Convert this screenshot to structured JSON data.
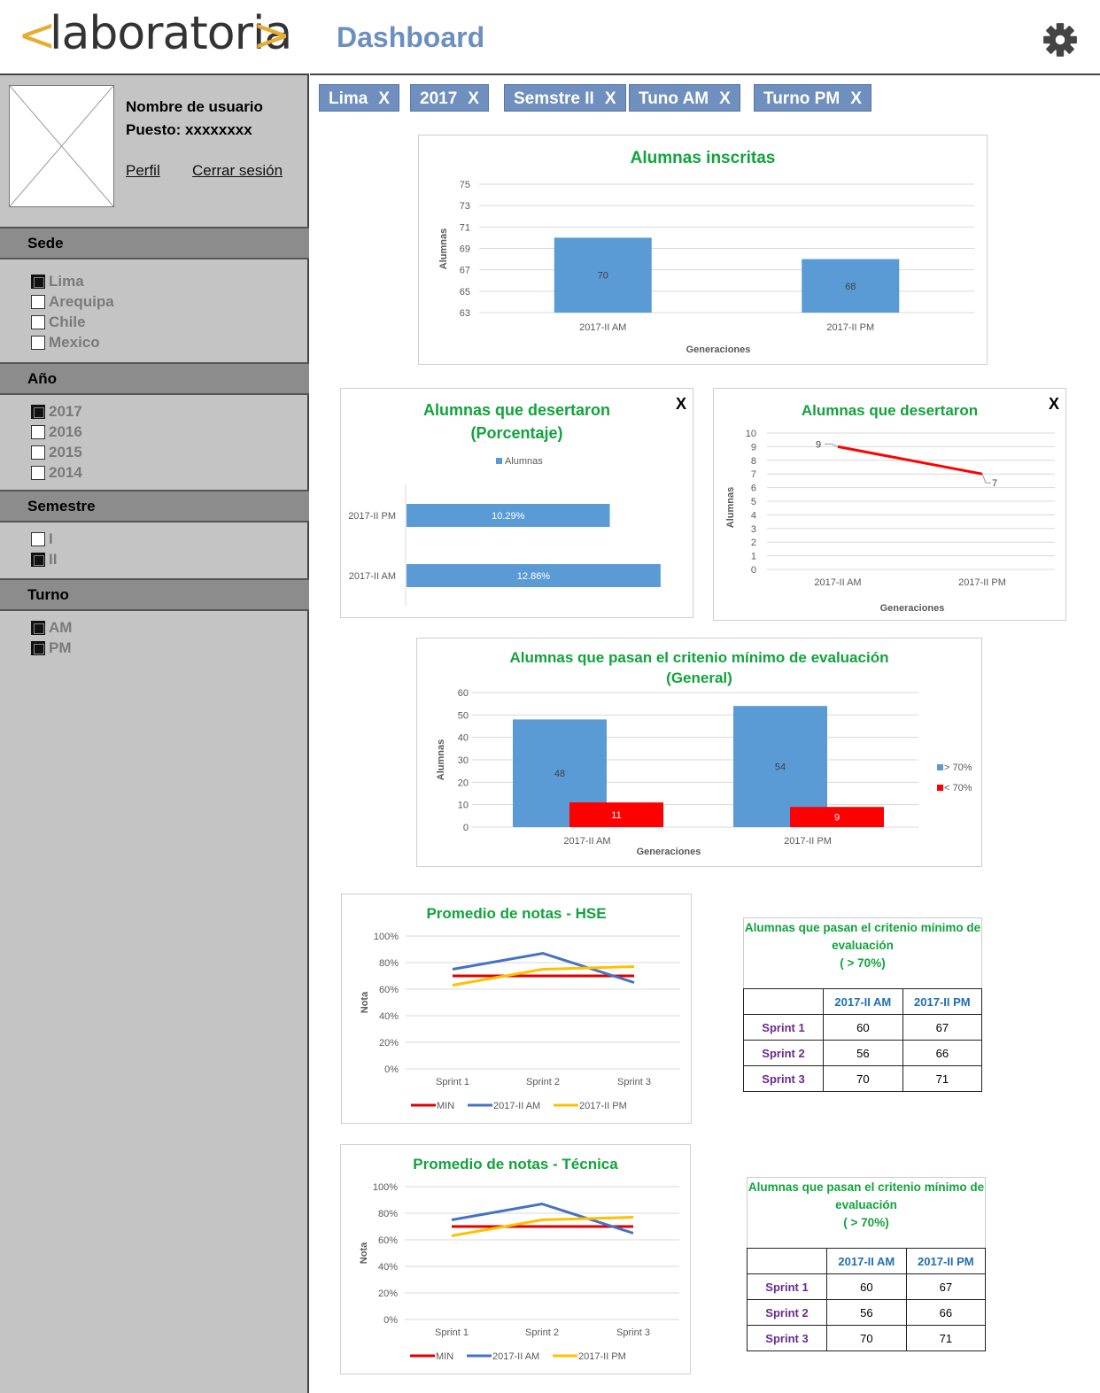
{
  "logo": {
    "lt": "<",
    "word": "laboratoria",
    "gt": ">"
  },
  "header": {
    "title": "Dashboard"
  },
  "user": {
    "name": "Nombre de usuario",
    "role": "Puesto: xxxxxxxx",
    "profile_link": "Perfil",
    "logout_link": "Cerrar sesión"
  },
  "filters": {
    "sede": {
      "label": "Sede",
      "options": [
        {
          "label": "Lima",
          "checked": true
        },
        {
          "label": "Arequipa",
          "checked": false
        },
        {
          "label": "Chile",
          "checked": false
        },
        {
          "label": "Mexico",
          "checked": false
        }
      ]
    },
    "anio": {
      "label": "Año",
      "options": [
        {
          "label": "2017",
          "checked": true
        },
        {
          "label": "2016",
          "checked": false
        },
        {
          "label": "2015",
          "checked": false
        },
        {
          "label": "2014",
          "checked": false
        }
      ]
    },
    "semestre": {
      "label": "Semestre",
      "options": [
        {
          "label": "I",
          "checked": false
        },
        {
          "label": "II",
          "checked": true
        }
      ]
    },
    "turno": {
      "label": "Turno",
      "options": [
        {
          "label": "AM",
          "checked": true
        },
        {
          "label": "PM",
          "checked": true
        }
      ]
    }
  },
  "chips": [
    {
      "label": "Lima",
      "close": "X"
    },
    {
      "label": "2017",
      "close": "X"
    },
    {
      "label": "Semstre II",
      "close": "X"
    },
    {
      "label": "Tuno AM",
      "close": "X"
    },
    {
      "label": "Turno PM",
      "close": "X"
    }
  ],
  "colors": {
    "accent_blue": "#5b9bd5",
    "red": "#ff0000",
    "title_green": "#12a33c",
    "chip": "#6f8fbe",
    "yellow": "#ffc000",
    "min_red": "#e00000",
    "am_blue": "#4472c4"
  },
  "chart_data": [
    {
      "type": "bar",
      "title": "Alumnas inscritas",
      "categories": [
        "2017-II AM",
        "2017-II PM"
      ],
      "values": [
        70,
        68
      ],
      "xlabel": "Generaciones",
      "ylabel": "Alumnas",
      "ylim": [
        63,
        75
      ],
      "yticks": [
        "63",
        "65",
        "67",
        "69",
        "71",
        "73",
        "75"
      ],
      "grid": true
    },
    {
      "type": "bar",
      "orientation": "horizontal",
      "title": "Alumnas  que  desertaron (Porcentaje)",
      "title_lines": [
        "Alumnas  que  desertaron",
        "(Porcentaje)"
      ],
      "close": "X",
      "categories": [
        "2017-II PM",
        "2017-II AM"
      ],
      "values": [
        10.29,
        12.86
      ],
      "labels": [
        "10.29%",
        "12.86%"
      ],
      "series": [
        {
          "name": "Alumnas",
          "values": [
            10.29,
            12.86
          ]
        }
      ],
      "legend": "top"
    },
    {
      "type": "line",
      "title": "Alumnas que desertaron",
      "close": "X",
      "x": [
        "2017-II AM",
        "2017-II PM"
      ],
      "values": [
        9,
        7
      ],
      "xlabel": "Generaciones",
      "ylabel": "Alumnas",
      "ylim": [
        0,
        10
      ],
      "yticks": [
        "0",
        "1",
        "2",
        "3",
        "4",
        "5",
        "6",
        "7",
        "8",
        "9",
        "10"
      ],
      "grid": true
    },
    {
      "type": "bar",
      "title": "Alumnas que pasan el critenio mínimo de evaluación (General)",
      "title_lines": [
        "Alumnas que pasan el critenio mínimo de evaluación",
        "(General)"
      ],
      "categories": [
        "2017-II AM",
        "2017-II PM"
      ],
      "series": [
        {
          "name": "> 70%",
          "values": [
            48,
            54
          ]
        },
        {
          "name": "< 70%",
          "values": [
            11,
            9
          ]
        }
      ],
      "xlabel": "Generaciones",
      "ylabel": "Alumnas",
      "ylim": [
        0,
        60
      ],
      "yticks": [
        "0",
        "10",
        "20",
        "30",
        "40",
        "50",
        "60"
      ],
      "legend": "right",
      "grid": true
    },
    {
      "type": "line",
      "title": "Promedio de notas - HSE",
      "x": [
        "Sprint 1",
        "Sprint 2",
        "Sprint 3"
      ],
      "series": [
        {
          "name": "MIN",
          "values": [
            70,
            70,
            70
          ]
        },
        {
          "name": "2017-II AM",
          "values": [
            75,
            87,
            65
          ]
        },
        {
          "name": "2017-II PM",
          "values": [
            63,
            75,
            77
          ]
        }
      ],
      "ylabel": "Nota",
      "ylim": [
        0,
        100
      ],
      "yticks": [
        "0%",
        "20%",
        "40%",
        "60%",
        "80%",
        "100%"
      ],
      "legend": "bottom",
      "grid": true
    },
    {
      "type": "line",
      "title": "Promedio de notas - Técnica",
      "x": [
        "Sprint 1",
        "Sprint 2",
        "Sprint 3"
      ],
      "series": [
        {
          "name": "MIN",
          "values": [
            70,
            70,
            70
          ]
        },
        {
          "name": "2017-II AM",
          "values": [
            75,
            87,
            65
          ]
        },
        {
          "name": "2017-II PM",
          "values": [
            63,
            75,
            77
          ]
        }
      ],
      "ylabel": "Nota",
      "ylim": [
        0,
        100
      ],
      "yticks": [
        "0%",
        "20%",
        "40%",
        "60%",
        "80%",
        "100%"
      ],
      "legend": "bottom",
      "grid": true
    },
    {
      "type": "table",
      "title_lines": [
        "Alumnas que pasan el critenio mínimo de",
        "evaluación",
        "( > 70%)"
      ],
      "columns": [
        "2017-II AM",
        "2017-II PM"
      ],
      "rows": [
        {
          "label": "Sprint 1",
          "values": [
            "60",
            "67"
          ]
        },
        {
          "label": "Sprint 2",
          "values": [
            "56",
            "66"
          ]
        },
        {
          "label": "Sprint 3",
          "values": [
            "70",
            "71"
          ]
        }
      ]
    },
    {
      "type": "table",
      "title_lines": [
        "Alumnas que pasan el critenio mínimo de",
        "evaluación",
        "( > 70%)"
      ],
      "columns": [
        "2017-II AM",
        "2017-II PM"
      ],
      "rows": [
        {
          "label": "Sprint 1",
          "values": [
            "60",
            "67"
          ]
        },
        {
          "label": "Sprint 2",
          "values": [
            "56",
            "66"
          ]
        },
        {
          "label": "Sprint 3",
          "values": [
            "70",
            "71"
          ]
        }
      ]
    }
  ]
}
